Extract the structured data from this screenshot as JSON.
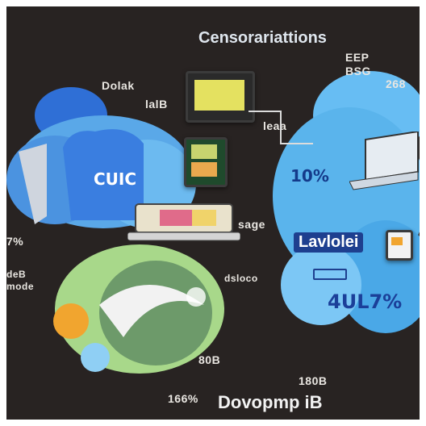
{
  "title": "Censorariattions",
  "footer": "Dovopmp iB",
  "labels": {
    "top_right_1": "EEP",
    "top_right_2": "BSG",
    "top_right_3": "268",
    "top_left_1": "Dolak",
    "top_left_2": "lalB",
    "mid_left_1": "deB",
    "mid_left_2": "7%",
    "mid_left_3": "mode",
    "center_1": "leaa",
    "center_2": "sage",
    "center_3": "dsloco",
    "bottom_1": "80B",
    "bottom_2": "180B",
    "bottom_3": "166%",
    "cloud_left": "CUIC",
    "cloud_right_percent": "10%",
    "cloud_right_title": "Lavlolei",
    "cloud_right_value": "4UL7%"
  },
  "colors": {
    "background": "#282322",
    "cloud_blue": "#5ab4ec",
    "cloud_dark_blue": "#2f6fd6",
    "leaf_green": "#a8d88a",
    "accent_yellow": "#e4e160",
    "accent_orange": "#f1a52f"
  },
  "icons": [
    "cloud-icon",
    "laptop-icon",
    "monitor-icon",
    "document-icon",
    "leaf-icon"
  ]
}
